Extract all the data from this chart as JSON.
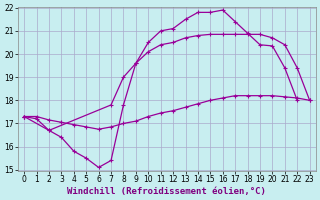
{
  "xlabel": "Windchill (Refroidissement éolien,°C)",
  "bg_color": "#c8eef0",
  "grid_color": "#aaaacc",
  "line_color": "#990099",
  "ylim": [
    15.0,
    22.0
  ],
  "xlim": [
    -0.5,
    23.5
  ],
  "yticks": [
    15,
    16,
    17,
    18,
    19,
    20,
    21,
    22
  ],
  "xticks": [
    0,
    1,
    2,
    3,
    4,
    5,
    6,
    7,
    8,
    9,
    10,
    11,
    12,
    13,
    14,
    15,
    16,
    17,
    18,
    19,
    20,
    21,
    22,
    23
  ],
  "line1_x": [
    0,
    1,
    2,
    3,
    4,
    5,
    6,
    7,
    8,
    9,
    10,
    11,
    12,
    13,
    14,
    15,
    16,
    17,
    18,
    19,
    20,
    21,
    22
  ],
  "line1_y": [
    17.3,
    17.2,
    16.7,
    16.4,
    15.8,
    15.5,
    15.1,
    15.4,
    17.8,
    19.6,
    20.5,
    21.0,
    21.1,
    21.5,
    21.8,
    21.8,
    21.9,
    21.4,
    20.9,
    20.4,
    20.35,
    19.4,
    18.0
  ],
  "line2_x": [
    0,
    1,
    2,
    3,
    4,
    5,
    6,
    7,
    8,
    9,
    10,
    11,
    12,
    13,
    14,
    15,
    16,
    17,
    18,
    19,
    20,
    21,
    22,
    23
  ],
  "line2_y": [
    17.3,
    17.3,
    17.15,
    17.05,
    16.95,
    16.85,
    16.75,
    16.85,
    17.0,
    17.1,
    17.3,
    17.45,
    17.55,
    17.7,
    17.85,
    18.0,
    18.1,
    18.2,
    18.2,
    18.2,
    18.2,
    18.15,
    18.1,
    18.0
  ],
  "line3_x": [
    0,
    2,
    7,
    8,
    9,
    10,
    11,
    12,
    13,
    14,
    15,
    16,
    17,
    18,
    19,
    20,
    21,
    22,
    23
  ],
  "line3_y": [
    17.3,
    16.7,
    17.8,
    19.0,
    19.6,
    20.1,
    20.4,
    20.5,
    20.7,
    20.8,
    20.85,
    20.85,
    20.85,
    20.85,
    20.85,
    20.7,
    20.4,
    19.4,
    18.0
  ],
  "xlabel_color": "#800080",
  "xlabel_fontsize": 6.5,
  "tick_fontsize": 5.5,
  "lw": 0.9,
  "ms": 2.5
}
